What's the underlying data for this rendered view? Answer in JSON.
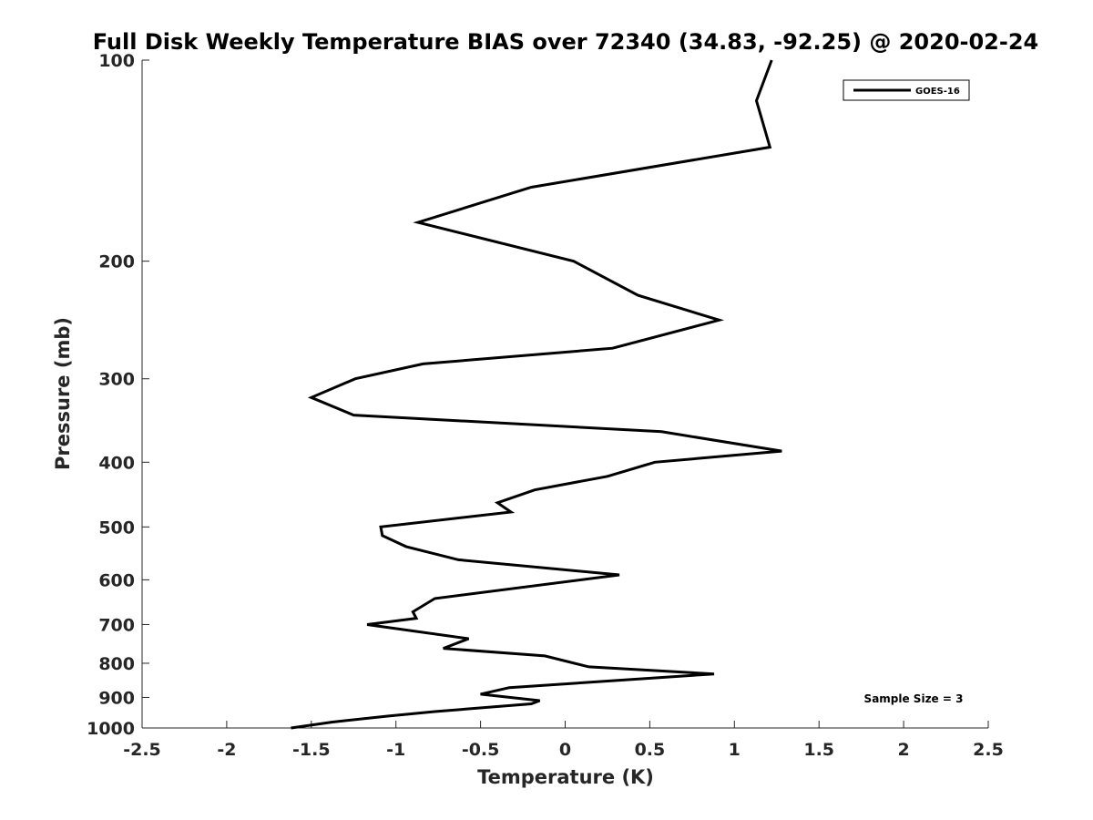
{
  "chart_data": {
    "type": "line",
    "title": "Full Disk Weekly Temperature BIAS over 72340 (34.83, -92.25) @ 2020-02-24",
    "xlabel": "Temperature (K)",
    "ylabel": "Pressure (mb)",
    "xlim": [
      -2.5,
      2.5
    ],
    "ylim": [
      1000,
      100
    ],
    "y_scale": "log",
    "y_reversed": true,
    "grid": false,
    "x_ticks": [
      -2.5,
      -2,
      -1.5,
      -1,
      -0.5,
      0,
      0.5,
      1,
      1.5,
      2,
      2.5
    ],
    "x_tick_labels": [
      "-2.5",
      "-2",
      "-1.5",
      "-1",
      "-0.5",
      "0",
      "0.5",
      "1",
      "1.5",
      "2",
      "2.5"
    ],
    "y_ticks": [
      100,
      200,
      300,
      400,
      500,
      600,
      700,
      800,
      900,
      1000
    ],
    "y_tick_labels": [
      "100",
      "200",
      "300",
      "400",
      "500",
      "600",
      "700",
      "800",
      "900",
      "1000"
    ],
    "legend": {
      "position": "top-right",
      "entries": [
        "GOES-16"
      ]
    },
    "annotation": "Sample Size = 3",
    "series": [
      {
        "name": "GOES-16",
        "color": "#000000",
        "points": [
          [
            1.22,
            100
          ],
          [
            1.13,
            115
          ],
          [
            1.21,
            135
          ],
          [
            -0.2,
            155
          ],
          [
            -0.87,
            175
          ],
          [
            0.05,
            200
          ],
          [
            0.43,
            225
          ],
          [
            0.91,
            245
          ],
          [
            0.28,
            270
          ],
          [
            -0.84,
            285
          ],
          [
            -1.24,
            300
          ],
          [
            -1.5,
            320
          ],
          [
            -1.25,
            340
          ],
          [
            0.57,
            360
          ],
          [
            1.28,
            385
          ],
          [
            0.53,
            400
          ],
          [
            0.25,
            420
          ],
          [
            -0.18,
            440
          ],
          [
            -0.4,
            460
          ],
          [
            -0.32,
            475
          ],
          [
            -1.09,
            500
          ],
          [
            -1.08,
            515
          ],
          [
            -0.94,
            535
          ],
          [
            -0.63,
            560
          ],
          [
            0.32,
            590
          ],
          [
            -0.77,
            640
          ],
          [
            -0.9,
            670
          ],
          [
            -0.88,
            685
          ],
          [
            -1.17,
            700
          ],
          [
            -0.57,
            735
          ],
          [
            -0.72,
            760
          ],
          [
            -0.12,
            780
          ],
          [
            0.14,
            810
          ],
          [
            0.88,
            830
          ],
          [
            -0.33,
            870
          ],
          [
            -0.5,
            890
          ],
          [
            -0.15,
            910
          ],
          [
            -0.2,
            920
          ],
          [
            -0.77,
            945
          ],
          [
            -1.05,
            960
          ],
          [
            -1.38,
            980
          ],
          [
            -1.62,
            1000
          ]
        ]
      }
    ]
  }
}
